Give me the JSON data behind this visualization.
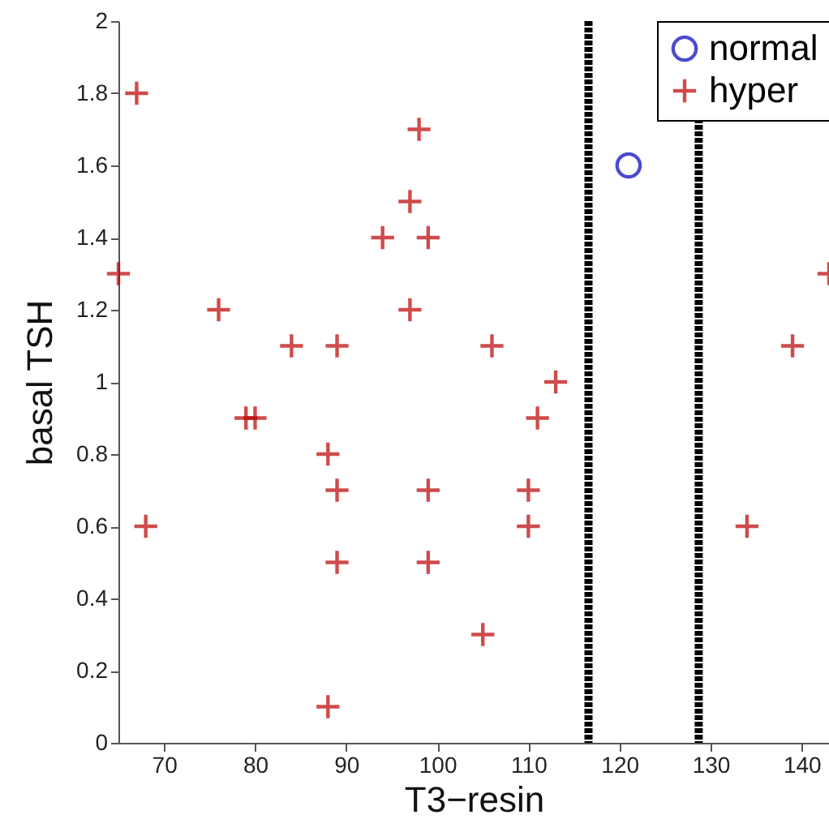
{
  "chart_data": {
    "type": "scatter",
    "xlabel": "T3−resin",
    "ylabel": "basal TSH",
    "xlim": [
      65,
      143
    ],
    "xticks": [
      70,
      80,
      90,
      100,
      110,
      120,
      130,
      140
    ],
    "ylim": [
      0,
      2
    ],
    "yticks": [
      0,
      0.2,
      0.4,
      0.6,
      0.8,
      1,
      1.2,
      1.4,
      1.6,
      1.8,
      2
    ],
    "grid": false,
    "legend": "top right",
    "series": [
      {
        "name": "normal",
        "color": "#0000bb",
        "marker": "circle",
        "x": [
          121
        ],
        "values": [
          1.6
        ]
      },
      {
        "name": "hyper",
        "color": "#bb0000",
        "marker": "cross",
        "x": [
          65,
          67,
          68,
          76,
          79,
          80,
          84,
          88,
          88,
          89,
          89,
          89,
          94,
          97,
          97,
          98,
          99,
          99,
          99,
          105,
          106,
          110,
          110,
          111,
          113,
          134,
          139,
          143
        ],
        "values": [
          1.3,
          1.8,
          0.6,
          1.2,
          0.9,
          0.9,
          1.1,
          0.8,
          0.1,
          1.1,
          0.7,
          0.5,
          1.4,
          1.5,
          1.2,
          1.7,
          1.4,
          0.7,
          0.5,
          0.3,
          1.1,
          0.7,
          0.6,
          0.9,
          1.0,
          0.6,
          1.1,
          1.3
        ]
      }
    ],
    "ref_lines": [
      {
        "axis": "x",
        "value": 116.6,
        "color": "#000000",
        "line_style": "dashed"
      },
      {
        "axis": "x",
        "value": 128.7,
        "color": "#000000",
        "line_style": "dashed"
      }
    ]
  }
}
